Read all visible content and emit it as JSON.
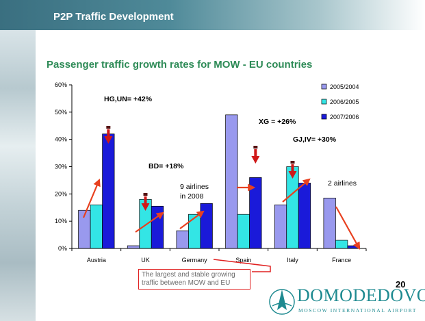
{
  "slide": {
    "header_title": "P2P Traffic Development",
    "subtitle": "Passenger traffic growth rates for MOW - EU countries",
    "slide_number": "20",
    "callout": "The largest and stable growing traffic between MOW and EU",
    "logo": {
      "name": "DOMODEDOVO",
      "tagline": "MOSCOW INTERNATIONAL AIRPORT"
    }
  },
  "chart_data": {
    "type": "bar",
    "categories": [
      "Austria",
      "UK",
      "Germany",
      "Spain",
      "Italy",
      "France"
    ],
    "series": [
      {
        "name": "2005/2004",
        "color": "#9999ee",
        "values": [
          14,
          1,
          6.5,
          49,
          16,
          18.5
        ]
      },
      {
        "name": "2006/2005",
        "color": "#33e5e5",
        "values": [
          16,
          18,
          12.5,
          12.5,
          30,
          3
        ]
      },
      {
        "name": "2007/2006",
        "color": "#1a1ad9",
        "values": [
          42,
          15.5,
          16.5,
          26,
          24,
          1
        ]
      }
    ],
    "ylim": [
      0,
      60
    ],
    "yticks": [
      "0%",
      "10%",
      "20%",
      "30%",
      "40%",
      "50%",
      "60%"
    ],
    "legend_position": "top-right",
    "annotations": [
      "HG,UN= +42%",
      "BD= +18%",
      "9 airlines in 2008",
      "XG = +26%",
      "GJ,IV= +30%",
      "2 airlines"
    ]
  }
}
